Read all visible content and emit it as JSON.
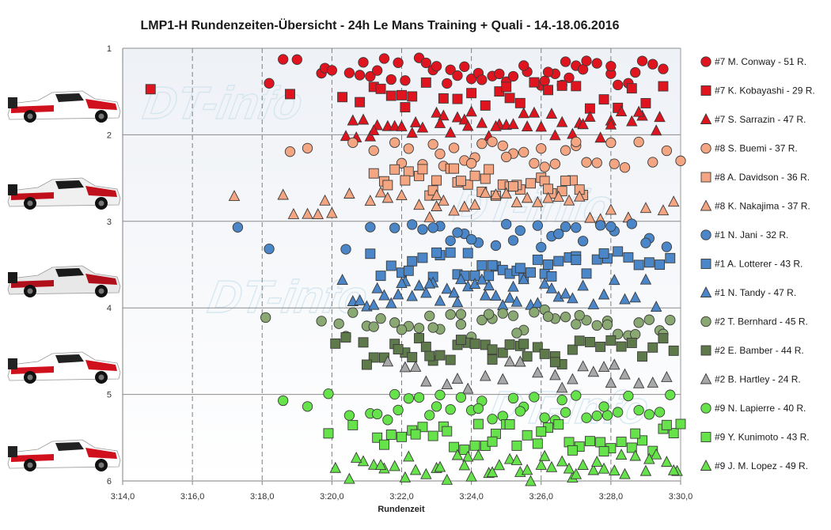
{
  "chart_data": {
    "type": "scatter",
    "title": "LMP1-H  Rundenzeiten-Übersicht  - 24h  Le Mans  Training  + Quali  - 14.-18.06.2016",
    "xlabel": "Rundenzeit",
    "ylabel": "",
    "x_unit": "seconds",
    "xlim": [
      194,
      210
    ],
    "ylim": [
      1,
      6
    ],
    "x_ticks": [
      "3:14,0",
      "3:16,0",
      "3:18,0",
      "3:20,0",
      "3:22,0",
      "3:24,0",
      "3:26,0",
      "3:28,0",
      "3:30,0"
    ],
    "y_ticks": [
      "1",
      "2",
      "3",
      "4",
      "5",
      "6"
    ],
    "grid": "vertical dashed, horizontal solid",
    "legend_position": "right",
    "watermark": "DT-info",
    "series": [
      {
        "name": "#7 M. Conway - 51 R.",
        "marker": "circle",
        "color": "#e0141e",
        "y": 1.27,
        "x": [
          198.2,
          198.6,
          199.7,
          199.8,
          200.0,
          200.8,
          200.9,
          201.1,
          201.3,
          201.5,
          201.9,
          202.1,
          202.5,
          202.7,
          202.9,
          203.3,
          203.4,
          203.6,
          203.8,
          204.0,
          204.2,
          204.6,
          204.8,
          205.0,
          205.2,
          205.6,
          206.0,
          206.1,
          206.4,
          206.6,
          206.8,
          207.0,
          207.2,
          207.6,
          208.0,
          208.2,
          208.5,
          208.7,
          209.2,
          209.5,
          199.0,
          200.5,
          201.7,
          203.0,
          204.3,
          205.5,
          206.2,
          206.7,
          207.3,
          208.0,
          208.9
        ]
      },
      {
        "name": "#7 K. Kobayashi - 29 R.",
        "marker": "square",
        "color": "#e0141e",
        "y": 1.55,
        "x": [
          194.8,
          198.8,
          200.3,
          200.8,
          201.2,
          201.4,
          201.7,
          202.0,
          202.3,
          202.7,
          203.2,
          203.6,
          204.0,
          204.4,
          204.8,
          205.1,
          205.4,
          205.8,
          206.2,
          206.6,
          207.0,
          207.4,
          207.8,
          208.2,
          208.6,
          209.0,
          209.5,
          202.1,
          205.0
        ]
      },
      {
        "name": "#7 S. Sarrazin - 47 R.",
        "marker": "triangle",
        "color": "#e0141e",
        "y": 1.88,
        "x": [
          200.4,
          200.6,
          200.9,
          201.1,
          201.3,
          201.6,
          201.8,
          202.0,
          202.4,
          202.6,
          203.0,
          203.2,
          203.4,
          203.6,
          203.8,
          204.0,
          204.3,
          204.5,
          204.8,
          205.0,
          205.2,
          205.5,
          205.8,
          206.0,
          206.3,
          206.6,
          206.9,
          207.1,
          207.4,
          207.7,
          208.0,
          208.3,
          208.6,
          208.9,
          209.3,
          201.2,
          202.3,
          203.1,
          203.9,
          204.7,
          205.6,
          206.4,
          207.2,
          208.0,
          208.8,
          209.4,
          200.7
        ]
      },
      {
        "name": "#8 S. Buemi - 37 R.",
        "marker": "circle",
        "color": "#f4a582",
        "y": 2.22,
        "x": [
          198.8,
          199.3,
          200.6,
          201.2,
          201.8,
          202.2,
          202.6,
          202.9,
          203.2,
          203.5,
          203.8,
          204.1,
          204.3,
          204.6,
          204.9,
          205.2,
          205.5,
          205.8,
          206.1,
          206.4,
          206.7,
          207.0,
          207.3,
          207.6,
          208.0,
          208.4,
          208.8,
          209.2,
          209.6,
          210.0,
          202.0,
          203.1,
          204.0,
          205.0,
          206.0,
          207.0,
          208.1
        ]
      },
      {
        "name": "#8 A. Davidson - 36 R.",
        "marker": "square",
        "color": "#f4a582",
        "y": 2.55,
        "x": [
          201.2,
          201.5,
          201.8,
          202.2,
          202.5,
          202.8,
          203.0,
          203.4,
          203.6,
          203.9,
          204.1,
          204.4,
          204.7,
          204.9,
          205.1,
          205.4,
          205.7,
          206.0,
          206.3,
          206.6,
          206.9,
          207.2,
          202.1,
          202.9,
          203.7,
          204.5,
          205.3,
          206.1,
          206.7,
          207.1,
          201.6,
          202.6,
          203.5,
          204.3,
          205.2,
          206.2
        ]
      },
      {
        "name": "#8 K. Nakajima - 37 R.",
        "marker": "triangle",
        "color": "#f4a582",
        "y": 2.82,
        "x": [
          197.2,
          198.6,
          198.9,
          199.3,
          199.6,
          199.8,
          200.5,
          201.1,
          201.4,
          202.0,
          202.5,
          202.8,
          203.0,
          203.2,
          203.5,
          203.8,
          204.1,
          204.4,
          204.7,
          205.0,
          205.3,
          205.6,
          205.9,
          206.2,
          206.5,
          206.8,
          207.1,
          207.4,
          207.7,
          208.0,
          208.5,
          209.0,
          209.5,
          209.8,
          200.0,
          201.6,
          203.0
        ]
      },
      {
        "name": "#1 N. Jani - 32 R.",
        "marker": "circle",
        "color": "#4a86c8",
        "y": 3.17,
        "x": [
          197.3,
          198.2,
          200.4,
          201.1,
          202.3,
          202.6,
          203.1,
          203.4,
          203.8,
          204.2,
          204.7,
          205.4,
          205.9,
          206.3,
          206.7,
          207.2,
          207.7,
          208.1,
          208.6,
          209.1,
          209.6,
          201.8,
          202.9,
          204.0,
          205.0,
          206.0,
          207.0,
          208.0,
          209.0,
          205.2,
          203.6,
          206.5
        ]
      },
      {
        "name": "#1 A. Lotterer - 43 R.",
        "marker": "square",
        "color": "#4a86c8",
        "y": 3.5,
        "x": [
          201.1,
          201.4,
          201.7,
          202.0,
          202.3,
          202.6,
          202.9,
          203.1,
          203.4,
          203.6,
          203.9,
          204.1,
          204.3,
          204.5,
          204.7,
          204.9,
          205.1,
          205.3,
          205.5,
          205.7,
          205.9,
          206.1,
          206.3,
          206.5,
          206.8,
          207.0,
          207.3,
          207.6,
          207.9,
          208.2,
          208.5,
          208.8,
          209.1,
          209.4,
          209.7,
          202.2,
          203.0,
          203.8,
          204.6,
          205.4,
          206.2,
          207.0,
          207.8
        ]
      },
      {
        "name": "#1 N. Tandy - 47 R.",
        "marker": "triangle",
        "color": "#4a86c8",
        "y": 3.83,
        "x": [
          200.3,
          200.6,
          200.8,
          201.0,
          201.2,
          201.5,
          201.7,
          201.9,
          202.1,
          202.3,
          202.5,
          202.7,
          202.9,
          203.1,
          203.3,
          203.5,
          203.7,
          203.9,
          204.1,
          204.3,
          204.5,
          204.7,
          204.9,
          205.1,
          205.3,
          205.5,
          205.7,
          205.9,
          206.1,
          206.3,
          206.5,
          206.7,
          206.9,
          207.2,
          207.5,
          207.8,
          208.1,
          208.4,
          208.7,
          209.0,
          209.3,
          201.3,
          202.0,
          202.8,
          203.6,
          204.4,
          205.2
        ]
      },
      {
        "name": "#2 T. Bernhard - 45 R.",
        "marker": "circle",
        "color": "#8aa872",
        "y": 4.18,
        "x": [
          198.1,
          199.7,
          200.2,
          200.6,
          201.0,
          201.4,
          201.8,
          202.2,
          202.5,
          202.8,
          203.1,
          203.4,
          203.7,
          204.0,
          204.3,
          204.6,
          204.9,
          205.2,
          205.5,
          205.8,
          206.1,
          206.4,
          206.7,
          207.0,
          207.3,
          207.6,
          207.9,
          208.2,
          208.5,
          208.8,
          209.1,
          209.4,
          209.7,
          200.4,
          201.2,
          202.0,
          202.9,
          203.7,
          204.5,
          205.3,
          206.2,
          207.1,
          207.9,
          208.7,
          209.5
        ]
      },
      {
        "name": "#2 E. Bamber - 44 R.",
        "marker": "square",
        "color": "#5e7a4a",
        "y": 4.5,
        "x": [
          200.1,
          200.4,
          200.9,
          201.2,
          201.5,
          201.8,
          202.1,
          202.3,
          202.5,
          202.7,
          202.9,
          203.1,
          203.4,
          203.6,
          203.9,
          204.1,
          204.4,
          204.6,
          204.9,
          205.1,
          205.4,
          205.6,
          205.9,
          206.1,
          206.4,
          206.6,
          206.9,
          207.1,
          207.4,
          207.7,
          208.0,
          208.3,
          208.6,
          208.9,
          209.2,
          209.5,
          209.8,
          201.0,
          201.9,
          202.8,
          203.7,
          204.6,
          205.5,
          206.4
        ]
      },
      {
        "name": "#2 B. Hartley - 24 R.",
        "marker": "triangle",
        "color": "#a8a8a8",
        "y": 4.78,
        "x": [
          201.6,
          202.1,
          202.7,
          203.3,
          203.9,
          204.4,
          204.9,
          205.4,
          205.9,
          206.4,
          206.9,
          207.2,
          207.5,
          207.8,
          208.1,
          208.4,
          208.8,
          209.2,
          209.6,
          202.4,
          203.6,
          205.1,
          206.6,
          208.0
        ]
      },
      {
        "name": "#9 N. Lapierre - 40 R.",
        "marker": "circle",
        "color": "#66e34a",
        "y": 5.15,
        "x": [
          198.6,
          199.3,
          199.9,
          200.5,
          201.1,
          201.3,
          201.6,
          201.9,
          202.2,
          202.5,
          202.8,
          203.1,
          203.4,
          203.7,
          204.0,
          204.3,
          204.6,
          204.9,
          205.2,
          205.5,
          205.8,
          206.1,
          206.4,
          206.7,
          207.0,
          207.3,
          207.6,
          207.9,
          208.2,
          208.5,
          208.8,
          209.1,
          209.4,
          209.7,
          201.8,
          203.0,
          204.2,
          205.4,
          206.6,
          207.8
        ]
      },
      {
        "name": "#9 Y. Kunimoto - 43 R.",
        "marker": "square",
        "color": "#66e34a",
        "y": 5.5,
        "x": [
          199.9,
          200.6,
          201.3,
          201.7,
          202.0,
          202.3,
          202.6,
          202.9,
          203.2,
          203.5,
          203.8,
          204.1,
          204.4,
          204.7,
          205.0,
          205.3,
          205.6,
          205.9,
          206.2,
          206.5,
          206.8,
          207.1,
          207.4,
          207.7,
          208.0,
          208.3,
          208.6,
          208.9,
          209.2,
          209.5,
          209.8,
          210.0,
          201.5,
          202.4,
          203.3,
          204.2,
          205.1,
          206.0,
          206.9,
          207.8,
          208.7,
          209.6,
          204.6
        ]
      },
      {
        "name": "#9 J. M. Lopez - 49 R.",
        "marker": "triangle",
        "color": "#66e34a",
        "y": 5.85,
        "x": [
          200.1,
          200.5,
          200.9,
          201.2,
          201.5,
          201.8,
          202.1,
          202.4,
          202.7,
          203.0,
          203.3,
          203.6,
          203.9,
          204.2,
          204.5,
          204.8,
          205.1,
          205.4,
          205.7,
          206.0,
          206.3,
          206.6,
          206.9,
          207.2,
          207.5,
          207.8,
          208.1,
          208.4,
          208.7,
          209.0,
          209.3,
          209.6,
          209.9,
          200.7,
          201.4,
          202.2,
          203.1,
          203.8,
          204.6,
          205.3,
          206.1,
          206.8,
          207.6,
          208.3,
          209.1,
          209.8,
          204.0,
          205.6,
          207.0
        ]
      }
    ]
  }
}
